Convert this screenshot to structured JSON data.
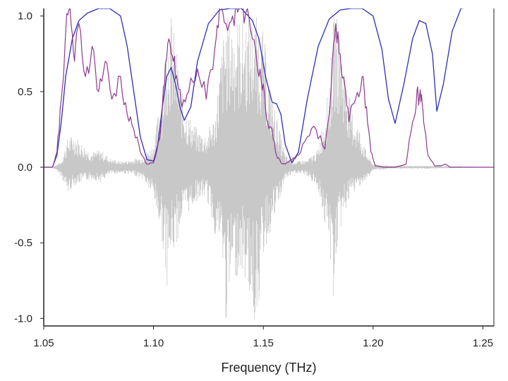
{
  "chart_data": {
    "type": "line",
    "title": "",
    "xlabel": "Frequency (THz)",
    "ylabel": "",
    "xlim": [
      1.05,
      1.255
    ],
    "ylim": [
      -1.05,
      1.05
    ],
    "grid": false,
    "x_ticks": [
      1.05,
      1.1,
      1.15,
      1.2,
      1.25
    ],
    "x_tick_labels": [
      "1.05",
      "1.10",
      "1.15",
      "1.20",
      "1.25"
    ],
    "y_ticks": [
      -1.0,
      -0.5,
      0.0,
      0.5,
      1.0
    ],
    "y_tick_labels": [
      "-1.0",
      "-0.5",
      "0.0",
      "0.5",
      "1.0"
    ],
    "series": [
      {
        "color": "#c8c8c8",
        "style": "oscillating signal",
        "x": [
          1.054,
          1.058,
          1.061,
          1.064,
          1.068,
          1.072,
          1.076,
          1.08,
          1.085,
          1.09,
          1.095,
          1.1,
          1.104,
          1.106,
          1.108,
          1.11,
          1.113,
          1.116,
          1.12,
          1.124,
          1.128,
          1.131,
          1.133,
          1.136,
          1.14,
          1.143,
          1.146,
          1.148,
          1.15,
          1.153,
          1.156,
          1.16,
          1.165,
          1.17,
          1.175,
          1.18,
          1.182,
          1.184,
          1.187,
          1.19,
          1.194,
          1.197,
          1.2,
          1.21,
          1.225,
          1.255
        ],
        "upper": [
          0.0,
          0.04,
          0.2,
          0.22,
          0.15,
          0.1,
          0.12,
          0.06,
          0.04,
          0.05,
          0.07,
          0.15,
          0.55,
          0.95,
          1.02,
          0.85,
          0.5,
          0.35,
          0.25,
          0.22,
          0.35,
          0.8,
          1.0,
          1.0,
          1.0,
          1.0,
          1.0,
          1.0,
          0.9,
          0.55,
          0.35,
          0.08,
          0.04,
          0.05,
          0.12,
          0.55,
          1.0,
          1.0,
          0.7,
          0.4,
          0.25,
          0.1,
          0.02,
          0.01,
          0.01,
          0.0
        ],
        "lower": [
          0.0,
          -0.06,
          -0.18,
          -0.12,
          -0.1,
          -0.08,
          -0.1,
          -0.05,
          -0.04,
          -0.05,
          -0.08,
          -0.2,
          -0.5,
          -0.8,
          -0.62,
          -0.55,
          -0.35,
          -0.3,
          -0.22,
          -0.2,
          -0.45,
          -0.55,
          -1.05,
          -0.75,
          -0.7,
          -0.8,
          -1.05,
          -0.9,
          -0.6,
          -0.45,
          -0.3,
          -0.08,
          -0.04,
          -0.06,
          -0.15,
          -0.55,
          -0.88,
          -0.5,
          -0.3,
          -0.2,
          -0.12,
          -0.1,
          -0.02,
          -0.01,
          -0.01,
          0.0
        ]
      },
      {
        "color": "#2e2eb8",
        "style": "smooth curve",
        "x": [
          1.05,
          1.054,
          1.056,
          1.058,
          1.06,
          1.063,
          1.066,
          1.07,
          1.075,
          1.08,
          1.085,
          1.088,
          1.091,
          1.094,
          1.097,
          1.1,
          1.102,
          1.104,
          1.106,
          1.108,
          1.11,
          1.112,
          1.114,
          1.117,
          1.12,
          1.125,
          1.13,
          1.135,
          1.14,
          1.145,
          1.148,
          1.151,
          1.154,
          1.156,
          1.158,
          1.16,
          1.163,
          1.166,
          1.17,
          1.175,
          1.18,
          1.185,
          1.19,
          1.195,
          1.2,
          1.204,
          1.207,
          1.21,
          1.214,
          1.218,
          1.221,
          1.224,
          1.227,
          1.229,
          1.232,
          1.236,
          1.24,
          1.245,
          1.25,
          1.255
        ],
        "y": [
          0.0,
          0.0,
          0.08,
          0.3,
          0.6,
          0.85,
          0.97,
          1.02,
          1.05,
          1.05,
          1.0,
          0.8,
          0.5,
          0.2,
          0.05,
          0.04,
          0.15,
          0.4,
          0.6,
          0.66,
          0.55,
          0.4,
          0.31,
          0.4,
          0.7,
          0.95,
          1.04,
          1.05,
          1.05,
          0.97,
          0.85,
          0.6,
          0.43,
          0.42,
          0.35,
          0.15,
          0.03,
          0.1,
          0.45,
          0.8,
          0.98,
          1.04,
          1.05,
          1.05,
          1.0,
          0.78,
          0.45,
          0.29,
          0.55,
          0.85,
          0.97,
          0.95,
          0.75,
          0.37,
          0.55,
          0.9,
          1.05,
          1.06,
          1.06,
          1.06
        ]
      },
      {
        "color": "#8e3a8e",
        "style": "noisy curve",
        "x": [
          1.05,
          1.054,
          1.056,
          1.058,
          1.06,
          1.062,
          1.064,
          1.066,
          1.069,
          1.072,
          1.075,
          1.078,
          1.081,
          1.085,
          1.088,
          1.091,
          1.094,
          1.097,
          1.1,
          1.103,
          1.105,
          1.107,
          1.109,
          1.111,
          1.113,
          1.116,
          1.12,
          1.124,
          1.128,
          1.13,
          1.133,
          1.136,
          1.139,
          1.142,
          1.145,
          1.148,
          1.15,
          1.152,
          1.154,
          1.156,
          1.158,
          1.16,
          1.163,
          1.166,
          1.17,
          1.174,
          1.178,
          1.181,
          1.183,
          1.185,
          1.187,
          1.189,
          1.192,
          1.195,
          1.197,
          1.199,
          1.201,
          1.205,
          1.21,
          1.215,
          1.218,
          1.22,
          1.221,
          1.222,
          1.223,
          1.225,
          1.228,
          1.231,
          1.233,
          1.235,
          1.24,
          1.255
        ],
        "y": [
          0.0,
          0.0,
          0.1,
          0.45,
          0.9,
          1.05,
          0.7,
          0.95,
          0.6,
          0.8,
          0.5,
          0.7,
          0.45,
          0.6,
          0.35,
          0.25,
          0.1,
          0.02,
          0.03,
          0.2,
          0.55,
          0.85,
          0.7,
          0.55,
          0.4,
          0.5,
          0.65,
          0.45,
          0.8,
          1.05,
          0.95,
          1.0,
          1.05,
          1.02,
          0.85,
          0.6,
          0.55,
          0.3,
          0.25,
          0.08,
          0.03,
          0.02,
          0.05,
          0.08,
          0.2,
          0.25,
          0.12,
          0.55,
          0.95,
          0.75,
          0.55,
          0.3,
          0.45,
          0.6,
          0.4,
          0.1,
          0.01,
          0.0,
          0.0,
          0.02,
          0.3,
          0.51,
          0.45,
          0.48,
          0.3,
          0.08,
          0.01,
          0.01,
          0.02,
          0.0,
          0.0,
          0.0
        ]
      }
    ]
  }
}
